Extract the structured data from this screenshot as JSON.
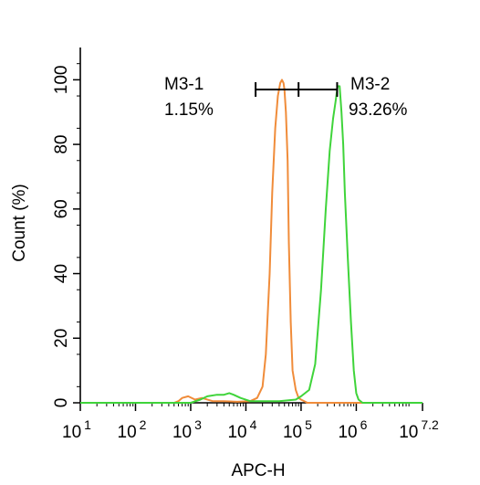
{
  "chart_data": {
    "type": "line",
    "xlabel": "APC-H",
    "ylabel": "Count  (%)",
    "x_scale": "log",
    "xlim": [
      10,
      15848932
    ],
    "ylim": [
      0,
      110
    ],
    "grid": false,
    "x_ticks": [
      {
        "value": 10,
        "base": "10",
        "exp": "1"
      },
      {
        "value": 100,
        "base": "10",
        "exp": "2"
      },
      {
        "value": 1000,
        "base": "10",
        "exp": "3"
      },
      {
        "value": 10000,
        "base": "10",
        "exp": "4"
      },
      {
        "value": 100000,
        "base": "10",
        "exp": "5"
      },
      {
        "value": 1000000,
        "base": "10",
        "exp": "6"
      },
      {
        "value": 15848932,
        "base": "10",
        "exp": "7.2"
      }
    ],
    "y_ticks": [
      0,
      20,
      40,
      60,
      80,
      100
    ],
    "colors": {
      "orange": "#f08c3a",
      "green": "#3fd43a"
    },
    "series": [
      {
        "color": "orange",
        "x": [
          10,
          500,
          600,
          700,
          900,
          1200,
          1600,
          2500,
          4000,
          7000,
          12000,
          16000,
          20000,
          23000,
          27000,
          30000,
          34000,
          38000,
          42000,
          45000,
          48000,
          50000,
          53000,
          57000,
          60000,
          65000,
          70000,
          80000,
          90000,
          100000,
          130000,
          1000000,
          15848932
        ],
        "y": [
          0,
          0,
          0.5,
          1.5,
          2,
          1,
          1.5,
          0.5,
          0.5,
          0.3,
          0.5,
          1.5,
          5,
          15,
          40,
          65,
          85,
          95,
          99,
          100,
          99,
          97,
          90,
          75,
          50,
          25,
          10,
          4,
          1.5,
          1,
          0,
          0,
          0
        ]
      },
      {
        "color": "green",
        "x": [
          10,
          1000,
          1500,
          2000,
          3000,
          4000,
          5000,
          6000,
          8000,
          12000,
          20000,
          40000,
          80000,
          100000,
          140000,
          180000,
          230000,
          280000,
          330000,
          380000,
          420000,
          460000,
          500000,
          540000,
          580000,
          620000,
          700000,
          800000,
          900000,
          1000000,
          1100000,
          1300000,
          15848932
        ],
        "y": [
          0,
          0,
          1,
          2,
          2.5,
          2.5,
          3,
          2.5,
          1.5,
          0.5,
          0.5,
          0.5,
          1,
          2,
          4,
          12,
          35,
          60,
          78,
          88,
          93,
          98,
          98,
          90,
          80,
          65,
          45,
          25,
          10,
          3,
          1,
          0,
          0
        ]
      }
    ],
    "markers": [
      {
        "label": "M3-1",
        "value": "1.15%",
        "from": 10,
        "to": 25000
      },
      {
        "label": "M3-2",
        "value": "93.26%",
        "from": 25000,
        "to": 15848932
      }
    ],
    "gate_bar": {
      "x_start": 15000,
      "x_mid": 90000,
      "x_end": 450000,
      "y": 97
    }
  }
}
